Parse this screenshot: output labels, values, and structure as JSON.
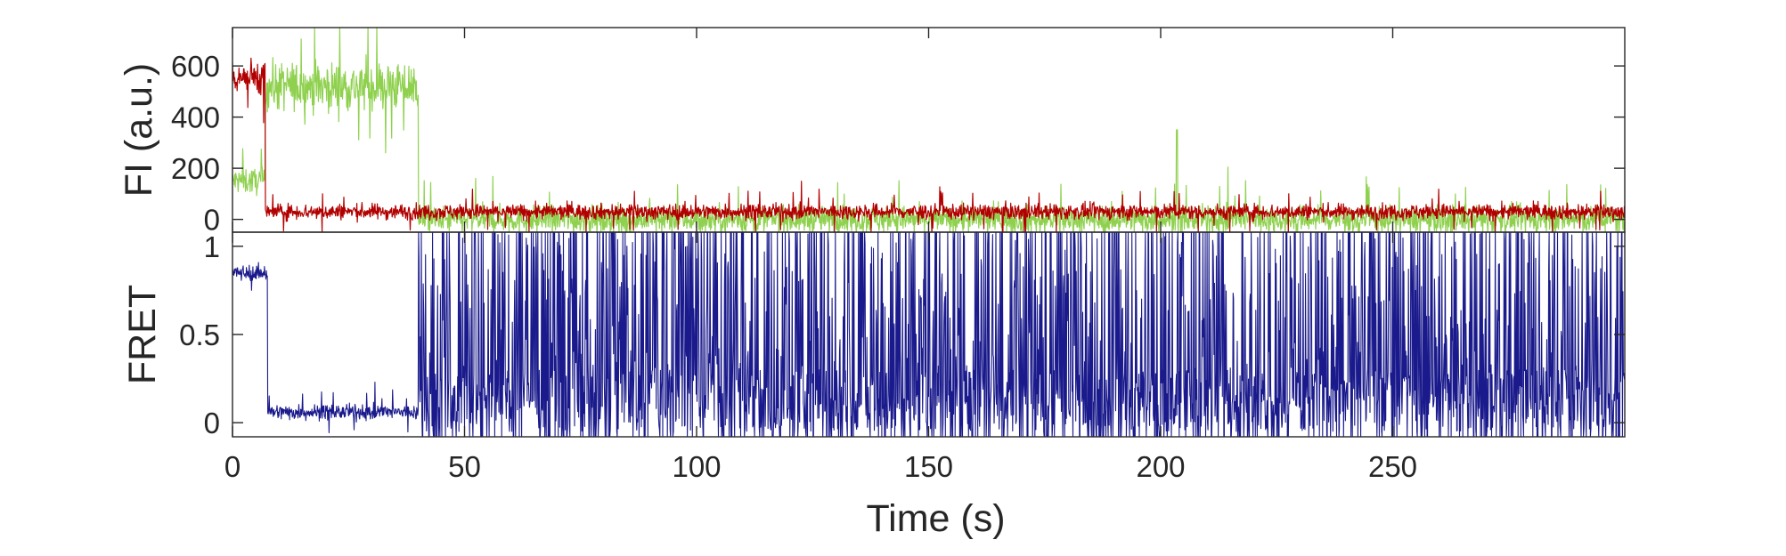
{
  "chart_data": [
    {
      "type": "line",
      "panel": "top",
      "xlim": [
        0,
        300
      ],
      "ylim": [
        -50,
        750
      ],
      "yticks": [
        0,
        200,
        400,
        600
      ],
      "ytick_labels": [
        "0",
        "200",
        "400",
        "600"
      ],
      "ylabel": "FI (a.u.)",
      "grid": false,
      "series": [
        {
          "color": "#8fd14f",
          "segments": [
            {
              "x_start": 0,
              "x_end": 7,
              "mean": 150,
              "noise": 60
            },
            {
              "x_start": 7,
              "x_end": 40,
              "mean": 520,
              "noise": 110
            },
            {
              "x_start": 40,
              "x_end": 300,
              "mean": 0,
              "noise": 60
            }
          ],
          "spikes": [
            {
              "x": 203.5,
              "y": 350
            }
          ]
        },
        {
          "color": "#b20000",
          "segments": [
            {
              "x_start": 0,
              "x_end": 7,
              "mean": 560,
              "noise": 80
            },
            {
              "x_start": 7,
              "x_end": 300,
              "mean": 30,
              "noise": 35
            }
          ]
        }
      ]
    },
    {
      "type": "line",
      "panel": "bottom",
      "xlim": [
        0,
        300
      ],
      "ylim": [
        -0.08,
        1.08
      ],
      "yticks": [
        0,
        0.5,
        1
      ],
      "ytick_labels": [
        "0",
        "0.5",
        "1"
      ],
      "ylabel": "FRET",
      "xticks": [
        0,
        50,
        100,
        150,
        200,
        250
      ],
      "xtick_labels": [
        "0",
        "50",
        "100",
        "150",
        "200",
        "250"
      ],
      "xlabel": "Time (s)",
      "grid": false,
      "series": [
        {
          "color": "#1a1a8c",
          "segments": [
            {
              "x_start": 0,
              "x_end": 7.5,
              "mean": 0.85,
              "noise": 0.05
            },
            {
              "x_start": 7.5,
              "x_end": 40,
              "mean": 0.06,
              "noise": 0.05
            },
            {
              "x_start": 40,
              "x_end": 300,
              "mean": 0.5,
              "noise": "full-range"
            }
          ]
        }
      ]
    }
  ]
}
